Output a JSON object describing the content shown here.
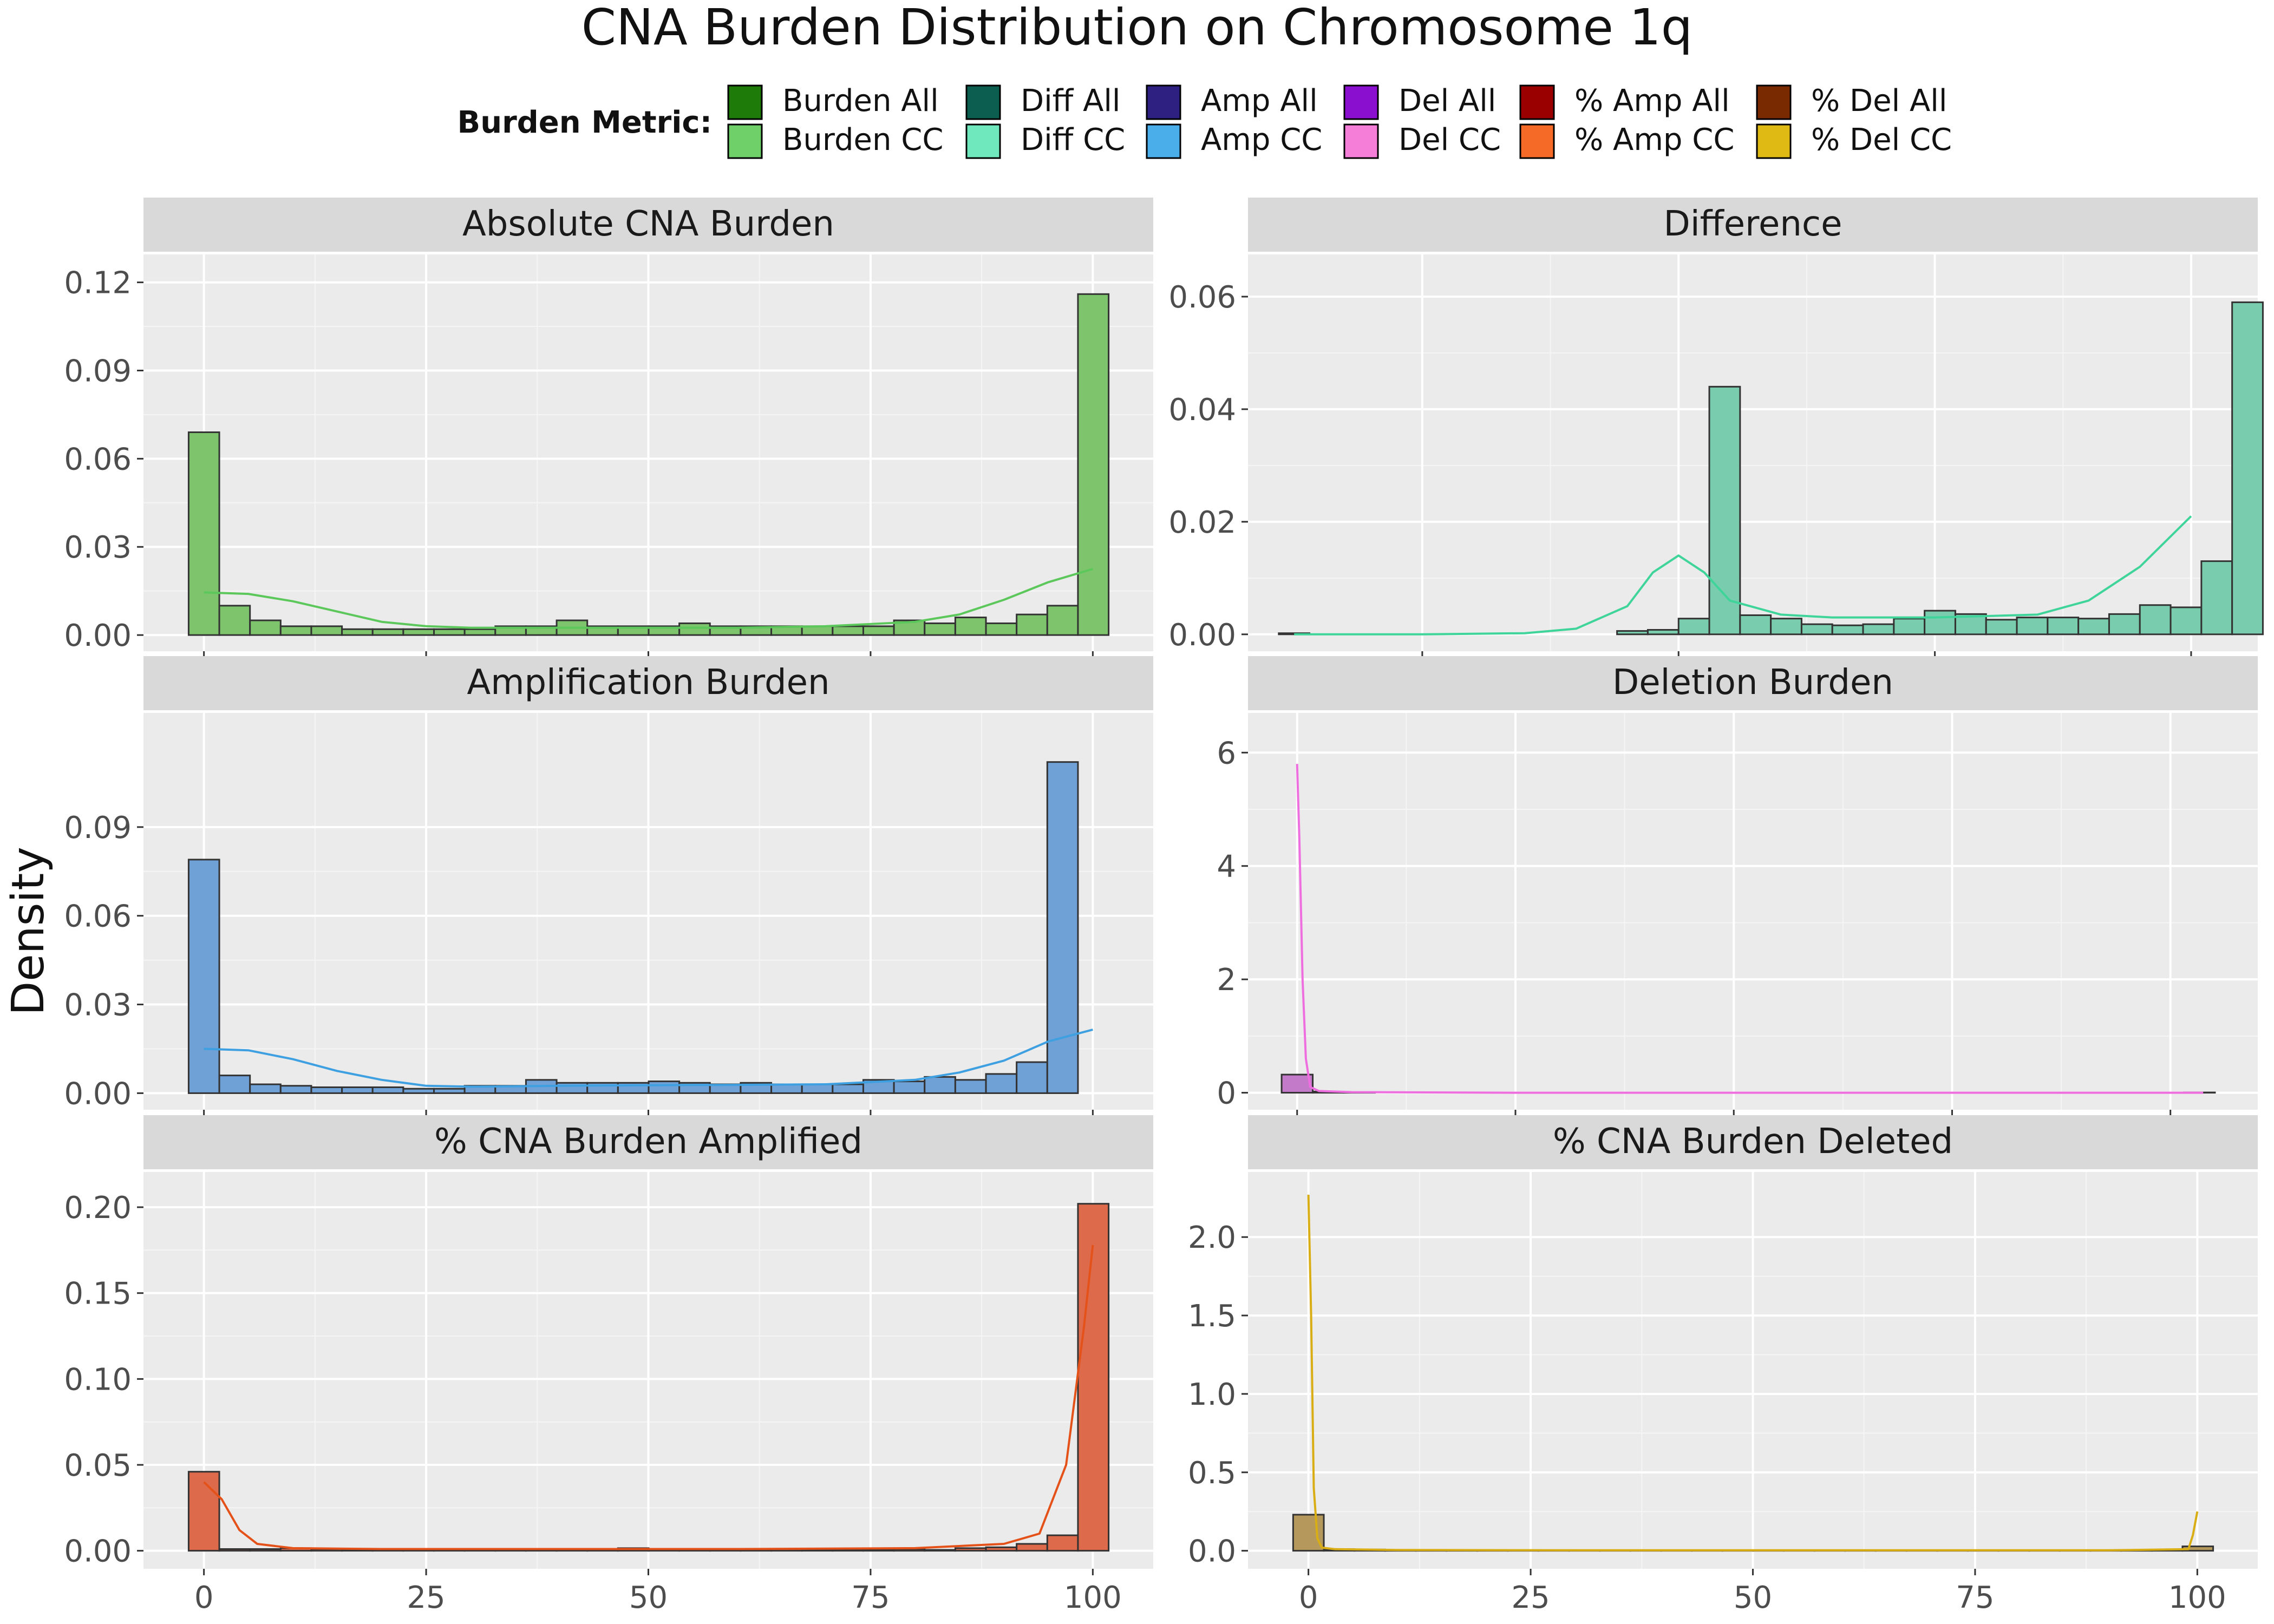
{
  "title": "CNA Burden Distribution on Chromosome 1q",
  "y_axis_label": "Density",
  "legend": {
    "title": "Burden Metric:",
    "placement": "top",
    "items": [
      {
        "label": "Burden All",
        "color": "#1e7b0a"
      },
      {
        "label": "Burden CC",
        "color": "#6fd06a"
      },
      {
        "label": "Diff All",
        "color": "#0b5e50"
      },
      {
        "label": "Diff CC",
        "color": "#6fe8bd"
      },
      {
        "label": "Amp All",
        "color": "#2d2080"
      },
      {
        "label": "Amp CC",
        "color": "#4aaeea"
      },
      {
        "label": "Del All",
        "color": "#8b0fcf"
      },
      {
        "label": "Del CC",
        "color": "#f57ed8"
      },
      {
        "label": "% Amp All",
        "color": "#9b0000"
      },
      {
        "label": "% Amp CC",
        "color": "#f46a26"
      },
      {
        "label": "% Del All",
        "color": "#7a2a00"
      },
      {
        "label": "% Del CC",
        "color": "#dfba14"
      }
    ]
  },
  "chart_data": [
    {
      "type": "histogram",
      "title": "Absolute CNA Burden",
      "fill": "#7ec46c",
      "curve": "#5cc75a",
      "xlim": [
        -6.8,
        106.8
      ],
      "ylim": [
        -0.0055,
        0.1295
      ],
      "xticks": [
        0,
        25,
        50,
        75,
        100
      ],
      "yticks": [
        0,
        0.03,
        0.06,
        0.09,
        0.12
      ],
      "ytick_labels": [
        "0.00",
        "0.03",
        "0.06",
        "0.09",
        "0.12"
      ],
      "binwidth": 3.45,
      "bin_start": -1.72,
      "values": [
        0.069,
        0.01,
        0.005,
        0.003,
        0.003,
        0.002,
        0.002,
        0.002,
        0.002,
        0.002,
        0.003,
        0.003,
        0.005,
        0.003,
        0.003,
        0.003,
        0.004,
        0.003,
        0.003,
        0.003,
        0.003,
        0.003,
        0.003,
        0.005,
        0.004,
        0.006,
        0.004,
        0.007,
        0.01,
        0.116
      ],
      "curve_x": [
        0,
        5,
        10,
        15,
        20,
        25,
        30,
        40,
        50,
        60,
        70,
        80,
        85,
        90,
        95,
        100
      ],
      "curve_y": [
        0.0145,
        0.014,
        0.0115,
        0.008,
        0.0045,
        0.003,
        0.0025,
        0.0025,
        0.0025,
        0.0025,
        0.003,
        0.0045,
        0.007,
        0.012,
        0.018,
        0.0225
      ]
    },
    {
      "type": "histogram",
      "title": "Difference",
      "fill": "#79ccae",
      "curve": "#3fd49a",
      "xlim": [
        -84.0,
        113.0
      ],
      "ylim": [
        -0.003,
        0.0675
      ],
      "xticks": [
        -50,
        0,
        50,
        100
      ],
      "yticks": [
        0,
        0.02,
        0.04,
        0.06
      ],
      "ytick_labels": [
        "0.00",
        "0.02",
        "0.04",
        "0.06"
      ],
      "binwidth": 6.0,
      "bin_start": -78.0,
      "values": [
        0.0002,
        0.0,
        0.0,
        0.0,
        0.0,
        0.0,
        0.0,
        0.0,
        0.0,
        0.0,
        0.0,
        0.0006,
        0.0008,
        0.0028,
        0.044,
        0.0034,
        0.0028,
        0.0018,
        0.0016,
        0.0018,
        0.0028,
        0.0042,
        0.0036,
        0.0026,
        0.003,
        0.003,
        0.0028,
        0.0036,
        0.0052,
        0.0048,
        0.013,
        0.059
      ],
      "curve_x": [
        -75,
        -50,
        -30,
        -20,
        -10,
        -5,
        0,
        5,
        10,
        20,
        30,
        50,
        70,
        80,
        90,
        100
      ],
      "curve_y": [
        0.0,
        0.0,
        0.0002,
        0.001,
        0.005,
        0.011,
        0.014,
        0.011,
        0.006,
        0.0035,
        0.003,
        0.003,
        0.0035,
        0.006,
        0.012,
        0.021
      ]
    },
    {
      "type": "histogram",
      "title": "Amplification Burden",
      "fill": "#6fa0d6",
      "curve": "#3ea0e0",
      "xlim": [
        -6.8,
        106.8
      ],
      "ylim": [
        -0.0056,
        0.1286
      ],
      "xticks": [
        0,
        25,
        50,
        75,
        100
      ],
      "yticks": [
        0,
        0.03,
        0.06,
        0.09
      ],
      "ytick_labels": [
        "0.00",
        "0.03",
        "0.06",
        "0.09"
      ],
      "binwidth": 3.45,
      "bin_start": -1.72,
      "values": [
        0.079,
        0.006,
        0.003,
        0.0025,
        0.002,
        0.002,
        0.002,
        0.0015,
        0.0015,
        0.0025,
        0.0025,
        0.0045,
        0.0035,
        0.0035,
        0.0035,
        0.004,
        0.0035,
        0.003,
        0.0035,
        0.003,
        0.003,
        0.003,
        0.0045,
        0.004,
        0.0055,
        0.0045,
        0.0065,
        0.0105,
        0.112
      ],
      "curve_x": [
        0,
        5,
        10,
        15,
        20,
        25,
        30,
        40,
        50,
        60,
        70,
        80,
        85,
        90,
        95,
        100
      ],
      "curve_y": [
        0.015,
        0.0145,
        0.0115,
        0.0075,
        0.0045,
        0.0025,
        0.0022,
        0.0025,
        0.0027,
        0.0028,
        0.003,
        0.0045,
        0.007,
        0.011,
        0.0175,
        0.0215
      ]
    },
    {
      "type": "histogram",
      "title": "Deletion Burden",
      "fill": "#c27ac9",
      "curve": "#ee6ee0",
      "xlim": [
        -4.5,
        88.0
      ],
      "ylim": [
        -0.3,
        6.7
      ],
      "xticks": [
        0,
        20,
        40,
        60,
        80
      ],
      "yticks": [
        0,
        2,
        4,
        6
      ],
      "ytick_labels": [
        "0",
        "2",
        "4",
        "6"
      ],
      "binwidth": 2.85,
      "bin_start": -1.42,
      "values": [
        0.32,
        0.02,
        0.01,
        0,
        0,
        0,
        0,
        0,
        0,
        0,
        0,
        0,
        0,
        0,
        0,
        0,
        0,
        0,
        0,
        0,
        0,
        0,
        0,
        0,
        0,
        0,
        0,
        0,
        0,
        0.005
      ],
      "curve_x": [
        0,
        0.2,
        0.5,
        0.8,
        1.2,
        2,
        5,
        20,
        40,
        60,
        83
      ],
      "curve_y": [
        5.8,
        4.5,
        2.0,
        0.6,
        0.1,
        0.03,
        0.01,
        0.0,
        0.0,
        0.0,
        0.0
      ]
    },
    {
      "type": "histogram",
      "title": "% CNA Burden Amplified",
      "fill": "#dd6a4b",
      "curve": "#e4521a",
      "xlim": [
        -6.8,
        106.8
      ],
      "ylim": [
        -0.0105,
        0.2205
      ],
      "xticks": [
        0,
        25,
        50,
        75,
        100
      ],
      "yticks": [
        0,
        0.05,
        0.1,
        0.15,
        0.2
      ],
      "ytick_labels": [
        "0.00",
        "0.05",
        "0.10",
        "0.15",
        "0.20"
      ],
      "binwidth": 3.45,
      "bin_start": -1.72,
      "values": [
        0.046,
        0.001,
        0.001,
        0.0015,
        0.001,
        0.0005,
        0.001,
        0.0005,
        0.0005,
        0.001,
        0.0005,
        0.0005,
        0.0005,
        0.001,
        0.0015,
        0.0005,
        0.0005,
        0.0005,
        0.001,
        0.001,
        0.0005,
        0.0005,
        0.0005,
        0.001,
        0.0005,
        0.0015,
        0.002,
        0.004,
        0.009,
        0.202
      ],
      "curve_x": [
        0,
        2,
        4,
        6,
        10,
        20,
        40,
        60,
        80,
        90,
        94,
        97,
        99,
        100
      ],
      "curve_y": [
        0.04,
        0.03,
        0.012,
        0.004,
        0.0015,
        0.001,
        0.001,
        0.001,
        0.0015,
        0.004,
        0.01,
        0.05,
        0.13,
        0.178
      ]
    },
    {
      "type": "histogram",
      "title": "% CNA Burden Deleted",
      "fill": "#b5995c",
      "curve": "#d9ad14",
      "xlim": [
        -6.8,
        106.8
      ],
      "ylim": [
        -0.115,
        2.415
      ],
      "xticks": [
        0,
        25,
        50,
        75,
        100
      ],
      "yticks": [
        0,
        0.5,
        1.0,
        1.5,
        2.0
      ],
      "ytick_labels": [
        "0.0",
        "0.5",
        "1.0",
        "1.5",
        "2.0"
      ],
      "binwidth": 3.45,
      "bin_start": -1.72,
      "values": [
        0.23,
        0.01,
        0.008,
        0.005,
        0.004,
        0.003,
        0.003,
        0.003,
        0.003,
        0.003,
        0.003,
        0.003,
        0.003,
        0.003,
        0.003,
        0.003,
        0.003,
        0.003,
        0.003,
        0.003,
        0.003,
        0.003,
        0.003,
        0.003,
        0.003,
        0.003,
        0.003,
        0.003,
        0.003,
        0.028
      ],
      "curve_x": [
        0,
        0.3,
        0.6,
        1.0,
        1.5,
        3,
        10,
        30,
        50,
        70,
        90,
        99,
        99.5,
        100
      ],
      "curve_y": [
        2.27,
        1.5,
        0.4,
        0.08,
        0.02,
        0.01,
        0.005,
        0.003,
        0.003,
        0.003,
        0.003,
        0.01,
        0.1,
        0.25
      ]
    }
  ]
}
